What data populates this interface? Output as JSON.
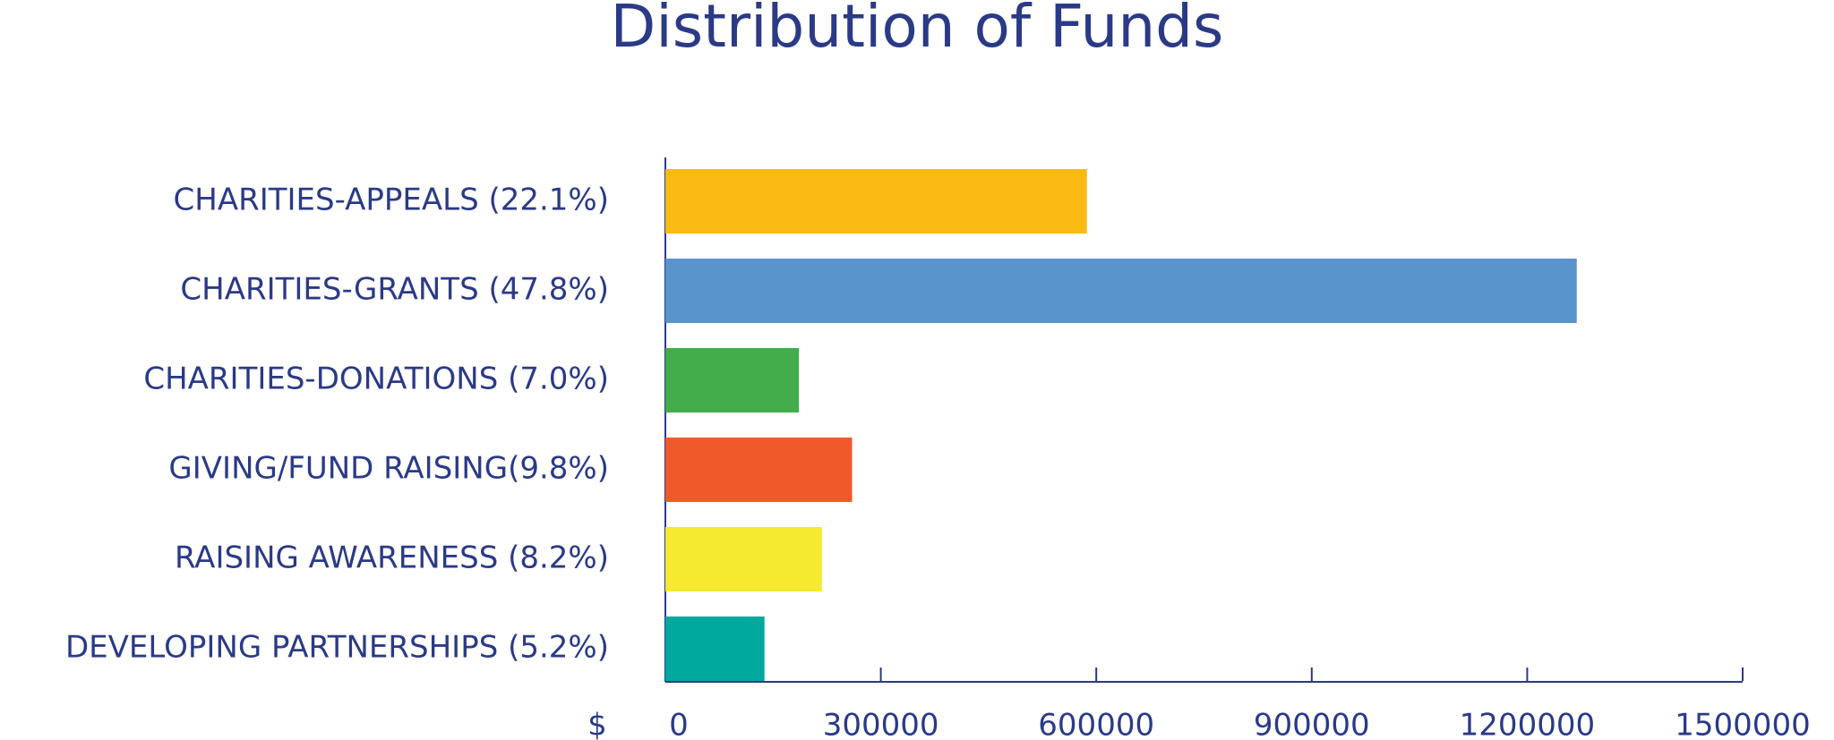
{
  "chart_data": {
    "type": "hbar",
    "title": "Distribution of Funds",
    "categories": [
      "CHARITIES-APPEALS (22.1%)",
      "CHARITIES-GRANTS (47.8%)",
      "CHARITIES-DONATIONS (7.0%)",
      "GIVING/FUND RAISING(9.8%)",
      "RAISING AWARENESS (8.2%)",
      "DEVELOPING PARTNERSHIPS (5.2%)"
    ],
    "values": [
      587000,
      1269000,
      186000,
      260000,
      218000,
      138000
    ],
    "colors": [
      "#fbb913",
      "#5a94cd",
      "#42ad4a",
      "#f05a2a",
      "#f5ea2f",
      "#00a99d"
    ],
    "xlabel": "$",
    "xlim": [
      0,
      1500000
    ],
    "xticks": [
      0,
      300000,
      600000,
      900000,
      1200000,
      1500000
    ]
  }
}
